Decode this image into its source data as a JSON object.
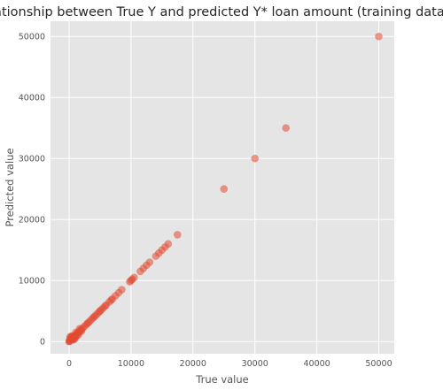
{
  "chart_data": {
    "type": "scatter",
    "title": "relationship between True Y and predicted Y* loan amount (training dataset)",
    "xlabel": "True value",
    "ylabel": "Predicted value",
    "xlim": [
      -3000,
      52500
    ],
    "ylim": [
      -2000,
      52500
    ],
    "xticks": [
      0,
      10000,
      20000,
      30000,
      40000,
      50000
    ],
    "yticks": [
      0,
      10000,
      20000,
      30000,
      40000,
      50000
    ],
    "grid": true,
    "colors": {
      "background": "#e5e5e5",
      "point": "#e24a33"
    },
    "points": [
      [
        50000,
        50000
      ],
      [
        35000,
        35000
      ],
      [
        30000,
        30000
      ],
      [
        25000,
        25000
      ],
      [
        17500,
        17500
      ],
      [
        16000,
        16000
      ],
      [
        15500,
        15500
      ],
      [
        15000,
        15000
      ],
      [
        14500,
        14500
      ],
      [
        14000,
        14000
      ],
      [
        13000,
        13000
      ],
      [
        12500,
        12500
      ],
      [
        12000,
        12000
      ],
      [
        11500,
        11500
      ],
      [
        10500,
        10500
      ],
      [
        10200,
        10200
      ],
      [
        10000,
        10000
      ],
      [
        9800,
        9800
      ],
      [
        8500,
        8500
      ],
      [
        8000,
        8000
      ],
      [
        7500,
        7500
      ],
      [
        7000,
        7000
      ],
      [
        6800,
        6800
      ],
      [
        6500,
        6500
      ],
      [
        6000,
        6000
      ],
      [
        5800,
        5800
      ],
      [
        5500,
        5500
      ],
      [
        5200,
        5200
      ],
      [
        5000,
        5000
      ],
      [
        4800,
        4800
      ],
      [
        4500,
        4500
      ],
      [
        4200,
        4200
      ],
      [
        4000,
        4000
      ],
      [
        3800,
        3800
      ],
      [
        3500,
        3500
      ],
      [
        3200,
        3200
      ],
      [
        3000,
        3000
      ],
      [
        2800,
        2800
      ],
      [
        2500,
        2500
      ],
      [
        2200,
        2200
      ],
      [
        2000,
        2000
      ],
      [
        1800,
        1800
      ],
      [
        1600,
        1600
      ],
      [
        1500,
        1500
      ],
      [
        1400,
        1400
      ],
      [
        1200,
        1200
      ],
      [
        1000,
        1000
      ],
      [
        900,
        900
      ],
      [
        800,
        800
      ],
      [
        700,
        700
      ],
      [
        600,
        600
      ],
      [
        500,
        500
      ],
      [
        400,
        400
      ],
      [
        300,
        300
      ],
      [
        200,
        200
      ],
      [
        100,
        100
      ],
      [
        50,
        50
      ],
      [
        0,
        0
      ],
      [
        500,
        300
      ],
      [
        300,
        600
      ],
      [
        800,
        600
      ],
      [
        600,
        900
      ],
      [
        1000,
        700
      ],
      [
        1200,
        900
      ],
      [
        200,
        800
      ],
      [
        700,
        300
      ],
      [
        1500,
        1100
      ],
      [
        1100,
        1500
      ],
      [
        400,
        900
      ],
      [
        900,
        400
      ],
      [
        150,
        500
      ],
      [
        2000,
        1700
      ],
      [
        1700,
        2100
      ]
    ]
  }
}
